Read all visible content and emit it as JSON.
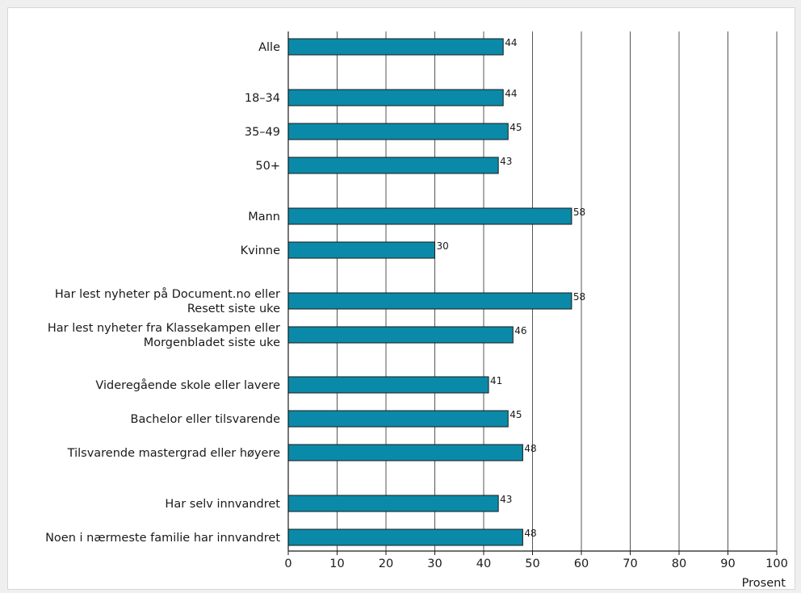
{
  "chart_data": {
    "type": "bar",
    "orientation": "horizontal",
    "categories": [
      "Alle",
      "18–34",
      "35–49",
      "50+",
      "Mann",
      "Kvinne",
      "Har lest nyheter på Document.no eller Resett siste uke",
      "Har lest nyheter fra Klassekampen eller Morgenbladet siste uke",
      "Videregående skole eller lavere",
      "Bachelor eller tilsvarende",
      "Tilsvarende mastergrad eller høyere",
      "Har selv innvandret",
      "Noen i nærmeste familie har innvandret"
    ],
    "category_lines": [
      [
        "Alle"
      ],
      [
        "18–34"
      ],
      [
        "35–49"
      ],
      [
        "50+"
      ],
      [
        "Mann"
      ],
      [
        "Kvinne"
      ],
      [
        "Har lest nyheter på Document.no eller",
        "Resett siste uke"
      ],
      [
        "Har lest nyheter fra Klassekampen eller",
        "Morgenbladet siste uke"
      ],
      [
        "Videregående skole eller lavere"
      ],
      [
        "Bachelor eller tilsvarende"
      ],
      [
        "Tilsvarende mastergrad eller høyere"
      ],
      [
        "Har selv innvandret"
      ],
      [
        "Noen i nærmeste familie har innvandret"
      ]
    ],
    "values": [
      44,
      44,
      45,
      43,
      58,
      30,
      58,
      46,
      41,
      45,
      48,
      43,
      48
    ],
    "xlabel": "Prosent",
    "xlim": [
      0,
      100
    ],
    "xticks": [
      0,
      10,
      20,
      30,
      40,
      50,
      60,
      70,
      80,
      90,
      100
    ],
    "grid": "vertical",
    "bar_color": "#0a8aa8",
    "bar_edge_color": "#1a1a1a",
    "grid_color": "#555555"
  }
}
